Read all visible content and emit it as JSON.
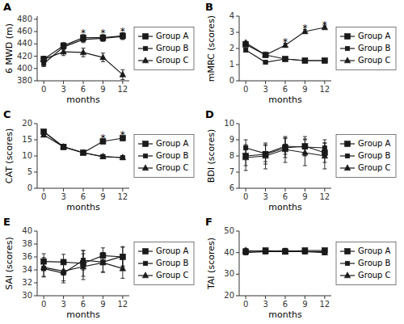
{
  "chart_data": [
    {
      "type": "line",
      "title": "A",
      "xlabel": "months",
      "ylabel": "6 MWD (m)",
      "x": [
        0,
        3,
        6,
        9,
        12
      ],
      "xlim": [
        -1,
        13
      ],
      "xticks": [
        0,
        3,
        6,
        9,
        12
      ],
      "ylim": [
        380,
        485
      ],
      "yticks": [
        380,
        400,
        420,
        440,
        460,
        480
      ],
      "grid": false,
      "legend": "right",
      "series": [
        {
          "name": "Group A",
          "color": "#1a1a1a",
          "marker": "square",
          "values": [
            415,
            437,
            450,
            450,
            453
          ],
          "error": [
            5,
            5,
            5,
            5,
            5
          ]
        },
        {
          "name": "Group B",
          "color": "#1a1a1a",
          "marker": "square",
          "values": [
            408,
            435,
            447,
            449,
            452
          ],
          "error": [
            5,
            5,
            5,
            5,
            5
          ]
        },
        {
          "name": "Group C",
          "color": "#1a1a1a",
          "marker": "triangle",
          "values": [
            415,
            427,
            426,
            418,
            390
          ],
          "error": [
            5,
            6,
            7,
            7,
            8
          ]
        }
      ],
      "annotations": [
        {
          "x": 6,
          "text": "*"
        },
        {
          "x": 9,
          "text": "*"
        },
        {
          "x": 12,
          "text": "*"
        }
      ]
    },
    {
      "type": "line",
      "title": "B",
      "xlabel": "months",
      "ylabel": "mMRC (scores)",
      "x": [
        0,
        3,
        6,
        9,
        12
      ],
      "xlim": [
        -1,
        13
      ],
      "xticks": [
        0,
        3,
        6,
        9,
        12
      ],
      "ylim": [
        0,
        4
      ],
      "yticks": [
        0,
        1,
        2,
        3,
        4
      ],
      "grid": false,
      "legend": "right",
      "series": [
        {
          "name": "Group A",
          "color": "#1a1a1a",
          "marker": "square",
          "values": [
            2.25,
            1.6,
            1.35,
            1.25,
            1.25
          ],
          "error": [
            0.1,
            0.1,
            0.1,
            0.1,
            0.1
          ]
        },
        {
          "name": "Group B",
          "color": "#1a1a1a",
          "marker": "square",
          "values": [
            1.9,
            1.15,
            1.35,
            1.25,
            1.25
          ],
          "error": [
            0.1,
            0.08,
            0.1,
            0.1,
            0.1
          ]
        },
        {
          "name": "Group C",
          "color": "#1a1a1a",
          "marker": "triangle",
          "values": [
            2.35,
            1.6,
            2.2,
            3.05,
            3.3
          ],
          "error": [
            0.1,
            0.1,
            0.12,
            0.12,
            0.1
          ]
        }
      ],
      "annotations": [
        {
          "x": 6,
          "text": "*"
        },
        {
          "x": 9,
          "text": "*"
        },
        {
          "x": 12,
          "text": "*"
        }
      ]
    },
    {
      "type": "line",
      "title": "C",
      "xlabel": "months",
      "ylabel": "CAT (scores)",
      "x": [
        0,
        3,
        6,
        9,
        12
      ],
      "xlim": [
        -1,
        13
      ],
      "xticks": [
        0,
        3,
        6,
        9,
        12
      ],
      "ylim": [
        0,
        20
      ],
      "yticks": [
        0,
        5,
        10,
        15,
        20
      ],
      "grid": false,
      "legend": "right",
      "series": [
        {
          "name": "Group A",
          "color": "#1a1a1a",
          "marker": "square",
          "values": [
            17.5,
            12.8,
            11.0,
            14.5,
            15.5
          ],
          "error": [
            0.6,
            0.7,
            0.5,
            0.7,
            0.7
          ]
        },
        {
          "name": "Group B",
          "color": "#1a1a1a",
          "marker": "square",
          "values": [
            17.5,
            12.8,
            11.0,
            9.8,
            9.5
          ],
          "error": [
            0.6,
            0.7,
            0.5,
            0.5,
            0.5
          ]
        },
        {
          "name": "Group C",
          "color": "#1a1a1a",
          "marker": "triangle",
          "values": [
            16.5,
            12.8,
            11.0,
            9.8,
            9.5
          ],
          "error": [
            0.6,
            0.7,
            0.5,
            0.5,
            0.5
          ]
        }
      ],
      "annotations": [
        {
          "x": 9,
          "text": "*"
        },
        {
          "x": 12,
          "text": "*"
        }
      ]
    },
    {
      "type": "line",
      "title": "D",
      "xlabel": "months",
      "ylabel": "BDI (scores)",
      "x": [
        0,
        3,
        6,
        9,
        12
      ],
      "xlim": [
        -1,
        13
      ],
      "xticks": [
        0,
        3,
        6,
        9,
        12
      ],
      "ylim": [
        6,
        10
      ],
      "yticks": [
        6,
        7,
        8,
        9,
        10
      ],
      "grid": false,
      "legend": "right",
      "series": [
        {
          "name": "Group A",
          "color": "#1a1a1a",
          "marker": "square",
          "values": [
            8.0,
            8.1,
            8.5,
            8.6,
            8.2
          ],
          "error": [
            0.6,
            0.6,
            0.6,
            0.6,
            0.6
          ]
        },
        {
          "name": "Group B",
          "color": "#1a1a1a",
          "marker": "square",
          "values": [
            8.5,
            8.15,
            8.6,
            8.55,
            8.5
          ],
          "error": [
            0.5,
            0.5,
            0.5,
            0.5,
            0.5
          ]
        },
        {
          "name": "Group C",
          "color": "#1a1a1a",
          "marker": "triangle",
          "values": [
            7.9,
            8.0,
            8.4,
            8.2,
            8.0
          ],
          "error": [
            0.8,
            0.8,
            0.8,
            0.8,
            0.8
          ]
        }
      ]
    },
    {
      "type": "line",
      "title": "E",
      "xlabel": "months",
      "ylabel": "SAI (scores)",
      "x": [
        0,
        3,
        6,
        9,
        12
      ],
      "xlim": [
        -1,
        13
      ],
      "xticks": [
        0,
        3,
        6,
        9,
        12
      ],
      "ylim": [
        30,
        40
      ],
      "yticks": [
        30,
        32,
        34,
        36,
        38,
        40
      ],
      "grid": false,
      "legend": "right",
      "series": [
        {
          "name": "Group A",
          "color": "#1a1a1a",
          "marker": "square",
          "values": [
            35.3,
            35.2,
            35.0,
            36.2,
            36.0
          ],
          "error": [
            1.2,
            1.2,
            2.0,
            1.2,
            1.5
          ]
        },
        {
          "name": "Group B",
          "color": "#1a1a1a",
          "marker": "square",
          "values": [
            34.2,
            33.5,
            35.5,
            35.2,
            36.1
          ],
          "error": [
            1.2,
            1.5,
            1.5,
            1.5,
            1.5
          ]
        },
        {
          "name": "Group C",
          "color": "#1a1a1a",
          "marker": "triangle",
          "values": [
            34.4,
            33.8,
            34.5,
            35.1,
            34.2
          ],
          "error": [
            1.5,
            1.5,
            2.0,
            1.5,
            1.5
          ]
        }
      ]
    },
    {
      "type": "line",
      "title": "F",
      "xlabel": "months",
      "ylabel": "TAI (scores)",
      "x": [
        0,
        3,
        6,
        9,
        12
      ],
      "xlim": [
        -1,
        13
      ],
      "xticks": [
        0,
        3,
        6,
        9,
        12
      ],
      "ylim": [
        20,
        50
      ],
      "yticks": [
        20,
        30,
        40,
        50
      ],
      "grid": false,
      "legend": "right",
      "series": [
        {
          "name": "Group A",
          "color": "#1a1a1a",
          "marker": "square",
          "values": [
            40.5,
            41.0,
            40.5,
            41.0,
            41.0
          ],
          "error": [
            1.0,
            1.0,
            1.0,
            1.0,
            1.0
          ]
        },
        {
          "name": "Group B",
          "color": "#1a1a1a",
          "marker": "square",
          "values": [
            40.0,
            40.5,
            41.0,
            40.5,
            40.5
          ],
          "error": [
            1.0,
            1.0,
            1.0,
            1.0,
            1.0
          ]
        },
        {
          "name": "Group C",
          "color": "#1a1a1a",
          "marker": "triangle",
          "values": [
            41.0,
            40.5,
            40.5,
            40.5,
            40.0
          ],
          "error": [
            1.0,
            1.0,
            1.0,
            1.0,
            1.0
          ]
        }
      ]
    }
  ]
}
